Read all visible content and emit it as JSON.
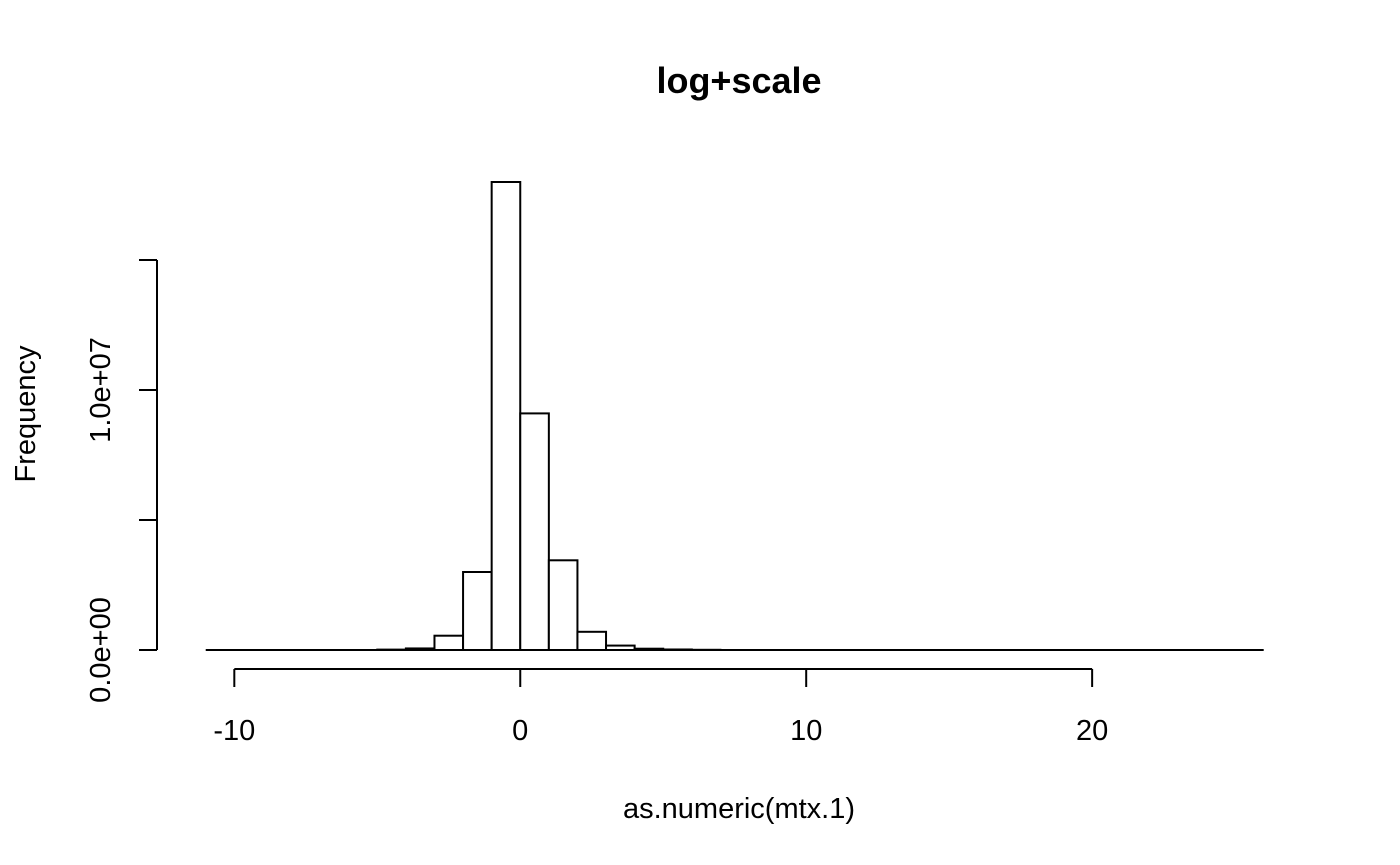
{
  "chart_data": {
    "type": "bar",
    "title": "log+scale",
    "xlabel": "as.numeric(mtx.1)",
    "ylabel": "Frequency",
    "bin_width": 1,
    "bin_start": -11,
    "bin_end": 26,
    "xlim": [
      -11.2,
      26.5
    ],
    "ylim": [
      0,
      19000000
    ],
    "x_ticks": [
      -10,
      0,
      10,
      20
    ],
    "x_tick_labels": [
      "-10",
      "0",
      "10",
      "20"
    ],
    "x_axis_range": [
      -10,
      20
    ],
    "y_ticks": [
      0,
      5000000,
      10000000,
      15000000
    ],
    "y_tick_labels": [
      "0.0e+00",
      "",
      "1.0e+07",
      ""
    ],
    "bins": [
      {
        "x0": -5,
        "x1": -4,
        "count": 15000
      },
      {
        "x0": -4,
        "x1": -3,
        "count": 60000
      },
      {
        "x0": -3,
        "x1": -2,
        "count": 550000
      },
      {
        "x0": -2,
        "x1": -1,
        "count": 3000000
      },
      {
        "x0": -1,
        "x1": 0,
        "count": 18000000
      },
      {
        "x0": 0,
        "x1": 1,
        "count": 9100000
      },
      {
        "x0": 1,
        "x1": 2,
        "count": 3450000
      },
      {
        "x0": 2,
        "x1": 3,
        "count": 700000
      },
      {
        "x0": 3,
        "x1": 4,
        "count": 170000
      },
      {
        "x0": 4,
        "x1": 5,
        "count": 50000
      },
      {
        "x0": 5,
        "x1": 6,
        "count": 20000
      },
      {
        "x0": 6,
        "x1": 7,
        "count": 8000
      }
    ],
    "grid": false,
    "legend": "none"
  }
}
